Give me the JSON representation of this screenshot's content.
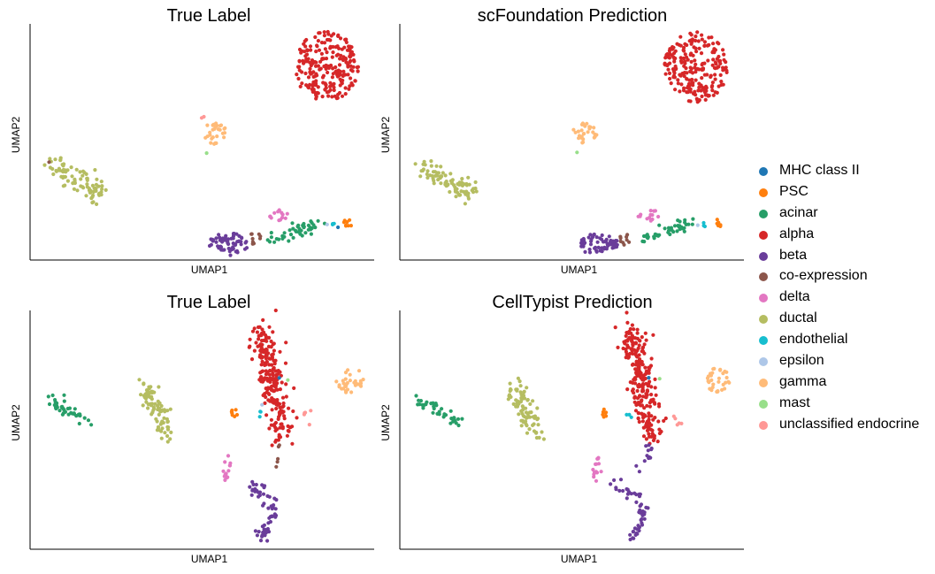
{
  "chart_data": [
    {
      "type": "scatter",
      "title": "True Label",
      "xlabel": "UMAP1",
      "ylabel": "UMAP2",
      "clusters": [
        {
          "cell_type": "alpha",
          "shape": "ellipse",
          "cx": 16.5,
          "cy": 9.1,
          "rx": 1.8,
          "ry": 1.7,
          "n": 230
        },
        {
          "cell_type": "gamma",
          "shape": "ellipse",
          "cx": 10.2,
          "cy": 5.9,
          "rx": 0.7,
          "ry": 0.5,
          "n": 28
        },
        {
          "cell_type": "ductal",
          "shape": "path",
          "path": [
            [
              1.0,
              4.4
            ],
            [
              2.7,
              3.5
            ],
            [
              3.9,
              3.0
            ]
          ],
          "spread": 0.55,
          "n": 85
        },
        {
          "cell_type": "delta",
          "shape": "ellipse",
          "cx": 13.8,
          "cy": 2.0,
          "rx": 0.6,
          "ry": 0.3,
          "n": 14
        },
        {
          "cell_type": "beta",
          "shape": "ellipse",
          "cx": 11.0,
          "cy": 0.6,
          "rx": 1.1,
          "ry": 0.55,
          "n": 65
        },
        {
          "cell_type": "co-expression",
          "shape": "ellipse",
          "cx": 12.5,
          "cy": 0.85,
          "rx": 0.35,
          "ry": 0.3,
          "n": 9
        },
        {
          "cell_type": "acinar",
          "shape": "path",
          "path": [
            [
              13.4,
              0.8
            ],
            [
              14.9,
              1.2
            ],
            [
              16.1,
              1.6
            ]
          ],
          "spread": 0.3,
          "n": 45
        },
        {
          "cell_type": "PSC",
          "shape": "ellipse",
          "cx": 17.8,
          "cy": 1.6,
          "rx": 0.35,
          "ry": 0.2,
          "n": 8
        },
        {
          "cell_type": "endothelial",
          "shape": "ellipse",
          "cx": 16.9,
          "cy": 1.5,
          "rx": 0.12,
          "ry": 0.12,
          "n": 3
        },
        {
          "cell_type": "MHC class II",
          "shape": "ellipse",
          "cx": 17.1,
          "cy": 1.4,
          "rx": 0.08,
          "ry": 0.08,
          "n": 1
        },
        {
          "cell_type": "epsilon",
          "shape": "ellipse",
          "cx": 16.6,
          "cy": 1.5,
          "rx": 0.1,
          "ry": 0.1,
          "n": 1
        },
        {
          "cell_type": "unclassified endocrine",
          "shape": "ellipse",
          "cx": 9.5,
          "cy": 6.7,
          "rx": 0.1,
          "ry": 0.1,
          "n": 2
        },
        {
          "cell_type": "mast",
          "shape": "ellipse",
          "cx": 9.8,
          "cy": 5.0,
          "rx": 0.08,
          "ry": 0.08,
          "n": 1
        },
        {
          "cell_type": "co-expression",
          "shape": "ellipse",
          "cx": 0.9,
          "cy": 4.5,
          "rx": 0.08,
          "ry": 0.08,
          "n": 1
        }
      ],
      "xlim": [
        0,
        19
      ],
      "ylim": [
        0,
        11
      ]
    },
    {
      "type": "scatter",
      "title": "scFoundation Prediction",
      "xlabel": "UMAP1",
      "ylabel": "UMAP2",
      "clusters": [
        {
          "cell_type": "alpha",
          "shape": "ellipse",
          "cx": 16.5,
          "cy": 9.1,
          "rx": 1.8,
          "ry": 1.7,
          "n": 230
        },
        {
          "cell_type": "gamma",
          "shape": "ellipse",
          "cx": 10.2,
          "cy": 5.9,
          "rx": 0.7,
          "ry": 0.5,
          "n": 28
        },
        {
          "cell_type": "ductal",
          "shape": "path",
          "path": [
            [
              1.0,
              4.4
            ],
            [
              2.7,
              3.5
            ],
            [
              3.9,
              3.0
            ]
          ],
          "spread": 0.55,
          "n": 85
        },
        {
          "cell_type": "delta",
          "shape": "ellipse",
          "cx": 13.8,
          "cy": 2.0,
          "rx": 0.6,
          "ry": 0.3,
          "n": 14
        },
        {
          "cell_type": "beta",
          "shape": "ellipse",
          "cx": 11.0,
          "cy": 0.6,
          "rx": 1.1,
          "ry": 0.55,
          "n": 65
        },
        {
          "cell_type": "co-expression",
          "shape": "ellipse",
          "cx": 12.5,
          "cy": 0.85,
          "rx": 0.35,
          "ry": 0.3,
          "n": 9
        },
        {
          "cell_type": "acinar",
          "shape": "path",
          "path": [
            [
              13.4,
              0.8
            ],
            [
              14.9,
              1.2
            ],
            [
              16.1,
              1.6
            ]
          ],
          "spread": 0.3,
          "n": 45
        },
        {
          "cell_type": "PSC",
          "shape": "ellipse",
          "cx": 17.8,
          "cy": 1.6,
          "rx": 0.35,
          "ry": 0.2,
          "n": 8
        },
        {
          "cell_type": "endothelial",
          "shape": "ellipse",
          "cx": 16.9,
          "cy": 1.5,
          "rx": 0.12,
          "ry": 0.12,
          "n": 3
        },
        {
          "cell_type": "epsilon",
          "shape": "ellipse",
          "cx": 16.6,
          "cy": 1.5,
          "rx": 0.1,
          "ry": 0.1,
          "n": 1
        },
        {
          "cell_type": "mast",
          "shape": "ellipse",
          "cx": 9.8,
          "cy": 5.0,
          "rx": 0.08,
          "ry": 0.08,
          "n": 1
        }
      ],
      "xlim": [
        0,
        19
      ],
      "ylim": [
        0,
        11
      ]
    },
    {
      "type": "scatter",
      "title": "True Label",
      "xlabel": "UMAP1",
      "ylabel": "UMAP2",
      "clusters": [
        {
          "cell_type": "acinar",
          "shape": "path",
          "path": [
            [
              0.8,
              6.6
            ],
            [
              2.0,
              6.1
            ],
            [
              3.2,
              5.6
            ]
          ],
          "spread": 0.3,
          "n": 40
        },
        {
          "cell_type": "ductal",
          "shape": "path",
          "path": [
            [
              6.5,
              7.3
            ],
            [
              7.0,
              6.2
            ],
            [
              7.8,
              5.0
            ]
          ],
          "spread": 0.55,
          "n": 80
        },
        {
          "cell_type": "alpha",
          "shape": "path",
          "path": [
            [
              13.1,
              9.8
            ],
            [
              13.6,
              8.2
            ],
            [
              13.9,
              6.8
            ],
            [
              14.4,
              5.0
            ]
          ],
          "spread": 0.75,
          "n": 235
        },
        {
          "cell_type": "gamma",
          "shape": "ellipse",
          "cx": 18.3,
          "cy": 7.5,
          "rx": 0.8,
          "ry": 0.6,
          "n": 32
        },
        {
          "cell_type": "PSC",
          "shape": "ellipse",
          "cx": 11.7,
          "cy": 6.0,
          "rx": 0.3,
          "ry": 0.2,
          "n": 7
        },
        {
          "cell_type": "endothelial",
          "shape": "ellipse",
          "cx": 13.1,
          "cy": 5.9,
          "rx": 0.2,
          "ry": 0.2,
          "n": 3
        },
        {
          "cell_type": "MHC class II",
          "shape": "ellipse",
          "cx": 14.2,
          "cy": 7.6,
          "rx": 0.1,
          "ry": 0.1,
          "n": 1
        },
        {
          "cell_type": "mast",
          "shape": "ellipse",
          "cx": 14.8,
          "cy": 7.5,
          "rx": 0.1,
          "ry": 0.1,
          "n": 1
        },
        {
          "cell_type": "unclassified endocrine",
          "shape": "ellipse",
          "cx": 15.9,
          "cy": 5.8,
          "rx": 0.3,
          "ry": 0.4,
          "n": 5
        },
        {
          "cell_type": "epsilon",
          "shape": "ellipse",
          "cx": 13.3,
          "cy": 6.4,
          "rx": 0.1,
          "ry": 0.1,
          "n": 1
        },
        {
          "cell_type": "delta",
          "shape": "ellipse",
          "cx": 11.2,
          "cy": 3.5,
          "rx": 0.25,
          "ry": 0.65,
          "n": 14
        },
        {
          "cell_type": "co-expression",
          "shape": "path",
          "path": [
            [
              14.1,
              4.6
            ],
            [
              14.1,
              3.6
            ]
          ],
          "spread": 0.1,
          "n": 5
        },
        {
          "cell_type": "beta",
          "shape": "path",
          "path": [
            [
              12.3,
              2.7
            ],
            [
              13.5,
              2.4
            ],
            [
              14.0,
              1.5
            ],
            [
              13.4,
              0.6
            ],
            [
              13.1,
              0.3
            ]
          ],
          "spread": 0.35,
          "n": 60
        }
      ],
      "xlim": [
        0,
        19.5
      ],
      "ylim": [
        0,
        10.5
      ]
    },
    {
      "type": "scatter",
      "title": "CellTypist Prediction",
      "xlabel": "UMAP1",
      "ylabel": "UMAP2",
      "clusters": [
        {
          "cell_type": "acinar",
          "shape": "path",
          "path": [
            [
              0.8,
              6.6
            ],
            [
              2.0,
              6.1
            ],
            [
              3.2,
              5.6
            ]
          ],
          "spread": 0.3,
          "n": 40
        },
        {
          "cell_type": "ductal",
          "shape": "path",
          "path": [
            [
              6.5,
              7.3
            ],
            [
              7.0,
              6.2
            ],
            [
              7.8,
              5.0
            ]
          ],
          "spread": 0.55,
          "n": 80
        },
        {
          "cell_type": "alpha",
          "shape": "path",
          "path": [
            [
              13.1,
              9.8
            ],
            [
              13.6,
              8.2
            ],
            [
              13.9,
              6.8
            ],
            [
              14.4,
              5.0
            ]
          ],
          "spread": 0.75,
          "n": 235
        },
        {
          "cell_type": "gamma",
          "shape": "ellipse",
          "cx": 18.3,
          "cy": 7.5,
          "rx": 0.8,
          "ry": 0.6,
          "n": 32
        },
        {
          "cell_type": "PSC",
          "shape": "ellipse",
          "cx": 11.7,
          "cy": 6.0,
          "rx": 0.3,
          "ry": 0.2,
          "n": 7
        },
        {
          "cell_type": "endothelial",
          "shape": "ellipse",
          "cx": 13.1,
          "cy": 5.9,
          "rx": 0.2,
          "ry": 0.2,
          "n": 3
        },
        {
          "cell_type": "MHC class II",
          "shape": "ellipse",
          "cx": 14.2,
          "cy": 7.6,
          "rx": 0.1,
          "ry": 0.1,
          "n": 1
        },
        {
          "cell_type": "mast",
          "shape": "ellipse",
          "cx": 14.8,
          "cy": 7.5,
          "rx": 0.1,
          "ry": 0.1,
          "n": 1
        },
        {
          "cell_type": "unclassified endocrine",
          "shape": "ellipse",
          "cx": 15.9,
          "cy": 5.8,
          "rx": 0.3,
          "ry": 0.4,
          "n": 5
        },
        {
          "cell_type": "delta",
          "shape": "ellipse",
          "cx": 11.2,
          "cy": 3.5,
          "rx": 0.25,
          "ry": 0.65,
          "n": 14
        },
        {
          "cell_type": "beta",
          "shape": "path",
          "path": [
            [
              14.1,
              4.6
            ],
            [
              14.1,
              3.6
            ],
            [
              12.3,
              2.7
            ],
            [
              13.5,
              2.4
            ],
            [
              14.0,
              1.5
            ],
            [
              13.4,
              0.6
            ],
            [
              13.1,
              0.3
            ]
          ],
          "spread": 0.35,
          "n": 65
        }
      ],
      "xlim": [
        0,
        19.5
      ],
      "ylim": [
        0,
        10.5
      ]
    }
  ],
  "legend": {
    "placement": "right",
    "items": [
      {
        "label": "MHC class II",
        "color": "#1f77b4"
      },
      {
        "label": "PSC",
        "color": "#ff7f0e"
      },
      {
        "label": "acinar",
        "color": "#279e68"
      },
      {
        "label": "alpha",
        "color": "#d62728"
      },
      {
        "label": "beta",
        "color": "#aa40fc"
      },
      {
        "label": "co-expression",
        "color": "#8c564b"
      },
      {
        "label": "delta",
        "color": "#e377c2"
      },
      {
        "label": "ductal",
        "color": "#b5bd61"
      },
      {
        "label": "endothelial",
        "color": "#17becf"
      },
      {
        "label": "epsilon",
        "color": "#aec7e8"
      },
      {
        "label": "gamma",
        "color": "#ffbb78"
      },
      {
        "label": "mast",
        "color": "#98df8a"
      },
      {
        "label": "unclassified endocrine",
        "color": "#ff9896"
      }
    ]
  }
}
